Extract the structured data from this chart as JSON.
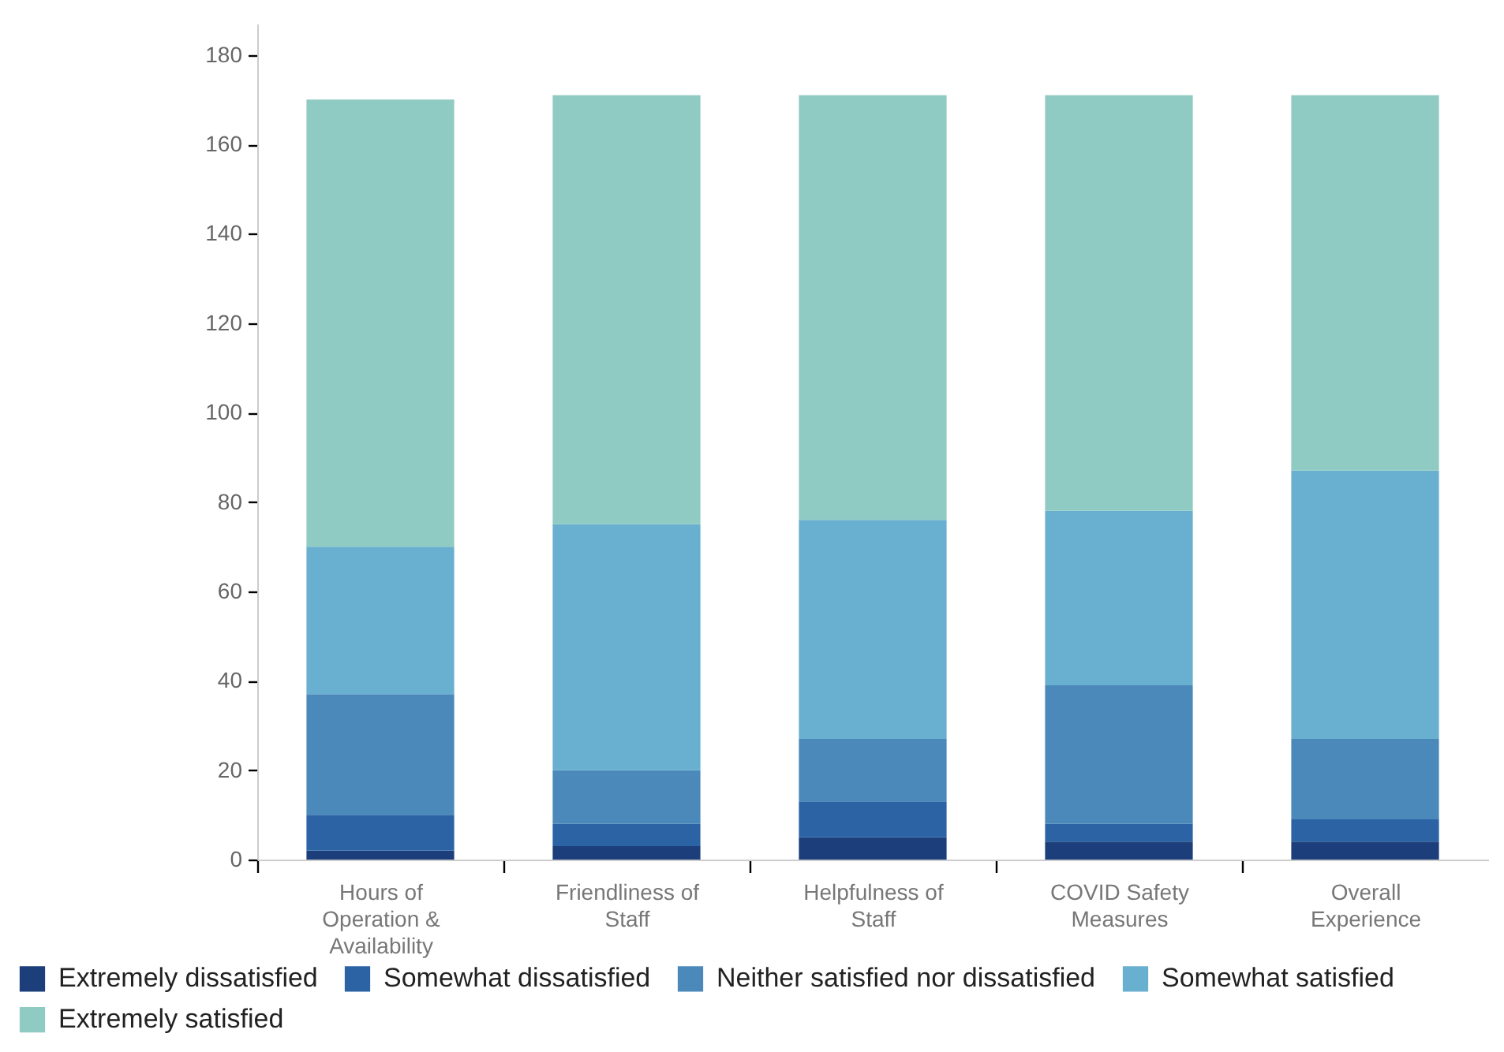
{
  "chart_data": {
    "type": "bar",
    "stacked": true,
    "categories": [
      "Hours of Operation & Availability",
      "Friendliness of Staff",
      "Helpfulness of Staff",
      "COVID Safety Measures",
      "Overall Experience"
    ],
    "series": [
      {
        "name": "Extremely dissatisfied",
        "color": "#1c3e7a",
        "values": [
          2,
          3,
          5,
          4,
          4
        ]
      },
      {
        "name": "Somewhat dissatisfied",
        "color": "#2b63a5",
        "values": [
          8,
          5,
          8,
          4,
          5
        ]
      },
      {
        "name": "Neither satisfied nor dissatisfied",
        "color": "#4a89ba",
        "values": [
          27,
          12,
          14,
          31,
          18
        ]
      },
      {
        "name": "Somewhat satisfied",
        "color": "#69afcf",
        "values": [
          33,
          55,
          49,
          39,
          60
        ]
      },
      {
        "name": "Extremely satisfied",
        "color": "#8fcac3",
        "values": [
          100,
          96,
          95,
          93,
          84
        ]
      }
    ],
    "ylim": [
      0,
      187
    ],
    "yticks": [
      0,
      20,
      40,
      60,
      80,
      100,
      120,
      140,
      160,
      180
    ],
    "grid": false,
    "legend": "bottom"
  }
}
